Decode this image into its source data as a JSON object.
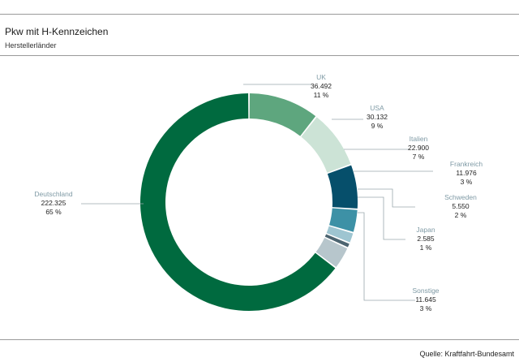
{
  "header": {
    "title": "Pkw mit H-Kennzeichen",
    "subtitle": "Herstellerländer"
  },
  "footer": {
    "source": "Quelle: Kraftfahrt-Bundesamt"
  },
  "colors": {
    "name_label": "#7f9aa5",
    "value_label": "#222222",
    "leader": "#9aa8ad"
  },
  "chart_data": {
    "type": "pie",
    "variant": "donut",
    "title": "Pkw mit H-Kennzeichen",
    "subtitle": "Herstellerländer",
    "slices": [
      {
        "name": "UK",
        "value": 36492,
        "value_label": "36.492",
        "percent_label": "11 %",
        "color": "#5ea67e"
      },
      {
        "name": "USA",
        "value": 30132,
        "value_label": "30.132",
        "percent_label": "9 %",
        "color": "#cce3d6"
      },
      {
        "name": "Italien",
        "value": 22900,
        "value_label": "22.900",
        "percent_label": "7 %",
        "color": "#064f6b"
      },
      {
        "name": "Frankreich",
        "value": 11976,
        "value_label": "11.976",
        "percent_label": "3 %",
        "color": "#3d91a6"
      },
      {
        "name": "Schweden",
        "value": 5550,
        "value_label": "5.550",
        "percent_label": "2 %",
        "color": "#9ec5d1"
      },
      {
        "name": "Japan",
        "value": 2585,
        "value_label": "2.585",
        "percent_label": "1 %",
        "color": "#4c6470"
      },
      {
        "name": "Sonstige",
        "value": 11645,
        "value_label": "11.645",
        "percent_label": "3 %",
        "color": "#b7c6cc"
      },
      {
        "name": "Deutschland",
        "value": 222325,
        "value_label": "222.325",
        "percent_label": "65 %",
        "color": "#006a3f"
      }
    ]
  }
}
